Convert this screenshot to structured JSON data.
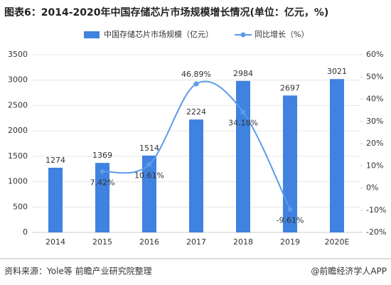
{
  "chart_data": {
    "type": "bar-line",
    "title": "图表6：2014-2020年中国存储芯片市场规模增长情况(单位：亿元，%)",
    "categories": [
      "2014",
      "2015",
      "2016",
      "2017",
      "2018",
      "2019",
      "2020E"
    ],
    "series": [
      {
        "name": "中国存储芯片市场规模（亿元）",
        "color": "#3f82e0",
        "type": "bar",
        "values": [
          1274,
          1369,
          1514,
          2224,
          2984,
          2697,
          3021
        ]
      },
      {
        "name": "同比增长（%）",
        "color": "#5b9bea",
        "type": "line",
        "axis": "y2",
        "values": [
          null,
          7.42,
          10.61,
          46.89,
          34.18,
          -9.61,
          null
        ],
        "value_labels": [
          null,
          "7.42%",
          "10.61%",
          "46.89%",
          "34.18%",
          "-9.61%",
          null
        ]
      }
    ],
    "ylim": [
      0,
      3500
    ],
    "yticks": [
      0,
      500,
      1000,
      1500,
      2000,
      2500,
      3000,
      3500
    ],
    "y2lim": [
      -20,
      60
    ],
    "y2ticks": [
      {
        "value": -20,
        "label": "-20%"
      },
      {
        "value": -10,
        "label": "-10%"
      },
      {
        "value": 0,
        "label": "0%"
      },
      {
        "value": 10,
        "label": "10%"
      },
      {
        "value": 20,
        "label": "20%"
      },
      {
        "value": 30,
        "label": "30%"
      },
      {
        "value": 40,
        "label": "40%"
      },
      {
        "value": 50,
        "label": "50%"
      },
      {
        "value": 60,
        "label": "60%"
      }
    ],
    "legend": "top",
    "source": "资料来源：Yole等 前瞻产业研究院整理",
    "credit": "@前瞻经济学人APP"
  }
}
